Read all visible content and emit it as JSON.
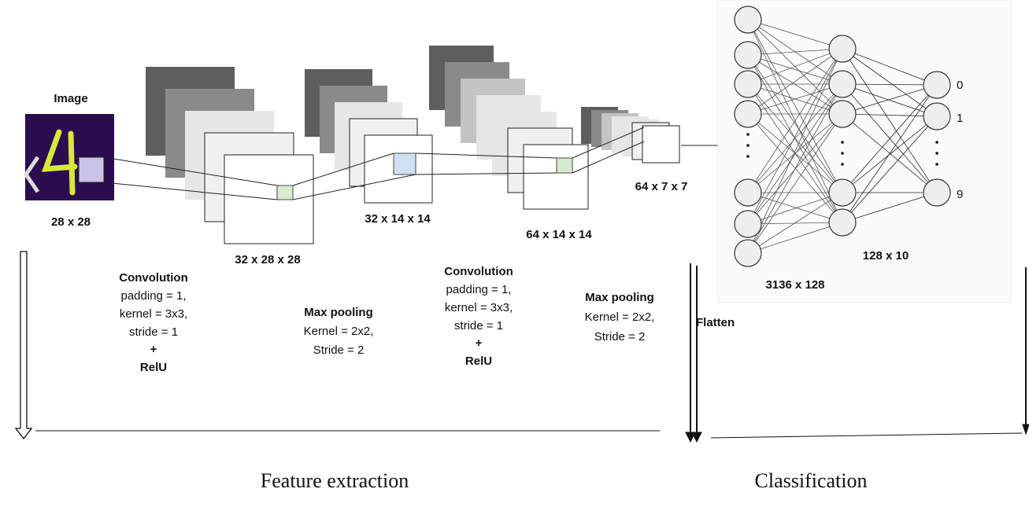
{
  "input": {
    "title": "Image",
    "size": "28 x 28"
  },
  "shapes": [
    "32 x 28 x 28",
    "32 x 14 x 14",
    "64 x 14 x 14",
    "64 x 7 x 7"
  ],
  "operations": [
    {
      "title": "Convolution",
      "lines": [
        "padding = 1,",
        "kernel = 3x3,",
        "stride = 1"
      ],
      "plus": "+",
      "activation": "RelU"
    },
    {
      "title": "Max pooling",
      "lines": [
        "Kernel = 2x2,",
        "Stride = 2"
      ]
    },
    {
      "title": "Convolution",
      "lines": [
        "padding = 1,",
        "kernel = 3x3,",
        "stride = 1"
      ],
      "plus": "+",
      "activation": "RelU"
    },
    {
      "title": "Max pooling",
      "lines": [
        "Kernel = 2x2,",
        "Stride = 2"
      ]
    }
  ],
  "flatten": "Flatten",
  "dense": {
    "labels": [
      "3136 x 128",
      "128 x 10"
    ],
    "outputs": [
      "0",
      "1",
      "9"
    ]
  },
  "sections": [
    "Feature extraction",
    "Classification"
  ]
}
